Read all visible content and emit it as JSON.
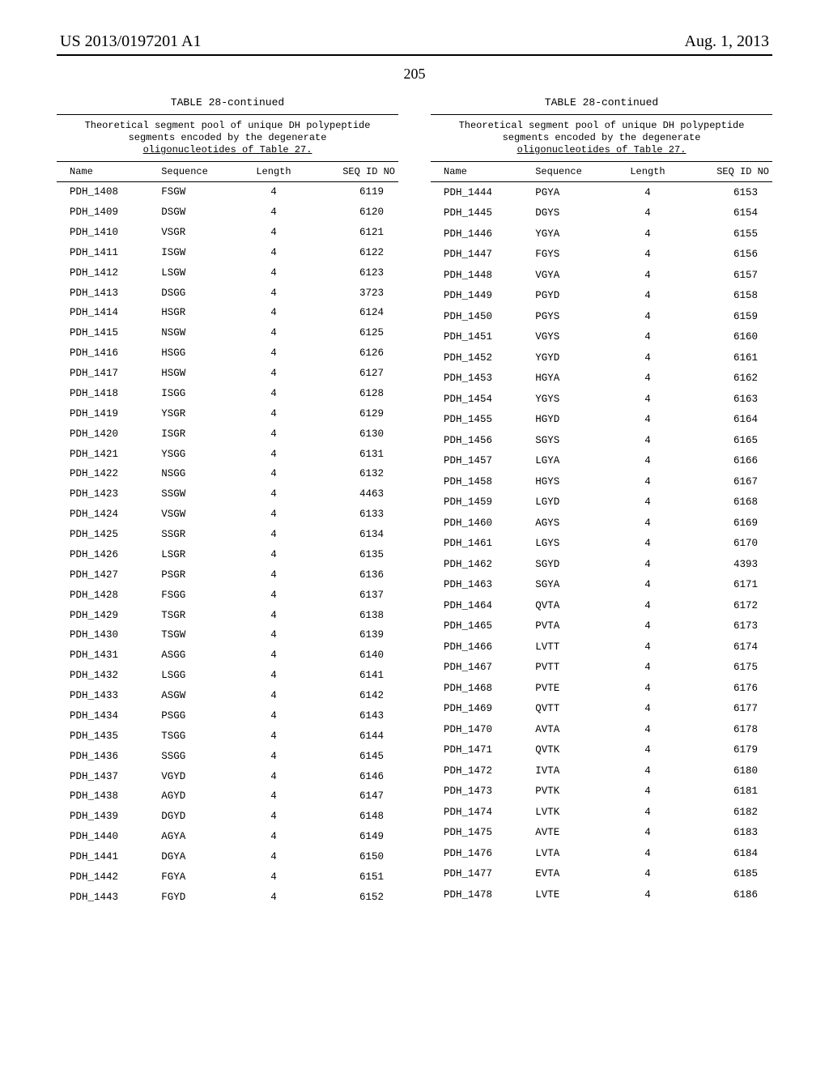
{
  "header": {
    "pub_number": "US 2013/0197201 A1",
    "pub_date": "Aug. 1, 2013"
  },
  "page_number": "205",
  "table": {
    "title": "TABLE 28-continued",
    "caption_line1": "Theoretical segment pool of unique DH polypeptide",
    "caption_line2": "segments encoded by the degenerate",
    "caption_line3": "oligonucleotides of Table 27.",
    "columns": {
      "name": "Name",
      "sequence": "Sequence",
      "length": "Length",
      "seq_id": "SEQ ID NO"
    }
  },
  "left_rows": [
    {
      "name": "PDH_1408",
      "sequence": "FSGW",
      "length": "4",
      "seq_id": "6119"
    },
    {
      "name": "PDH_1409",
      "sequence": "DSGW",
      "length": "4",
      "seq_id": "6120"
    },
    {
      "name": "PDH_1410",
      "sequence": "VSGR",
      "length": "4",
      "seq_id": "6121"
    },
    {
      "name": "PDH_1411",
      "sequence": "ISGW",
      "length": "4",
      "seq_id": "6122"
    },
    {
      "name": "PDH_1412",
      "sequence": "LSGW",
      "length": "4",
      "seq_id": "6123"
    },
    {
      "name": "PDH_1413",
      "sequence": "DSGG",
      "length": "4",
      "seq_id": "3723"
    },
    {
      "name": "PDH_1414",
      "sequence": "HSGR",
      "length": "4",
      "seq_id": "6124"
    },
    {
      "name": "PDH_1415",
      "sequence": "NSGW",
      "length": "4",
      "seq_id": "6125"
    },
    {
      "name": "PDH_1416",
      "sequence": "HSGG",
      "length": "4",
      "seq_id": "6126"
    },
    {
      "name": "PDH_1417",
      "sequence": "HSGW",
      "length": "4",
      "seq_id": "6127"
    },
    {
      "name": "PDH_1418",
      "sequence": "ISGG",
      "length": "4",
      "seq_id": "6128"
    },
    {
      "name": "PDH_1419",
      "sequence": "YSGR",
      "length": "4",
      "seq_id": "6129"
    },
    {
      "name": "PDH_1420",
      "sequence": "ISGR",
      "length": "4",
      "seq_id": "6130"
    },
    {
      "name": "PDH_1421",
      "sequence": "YSGG",
      "length": "4",
      "seq_id": "6131"
    },
    {
      "name": "PDH_1422",
      "sequence": "NSGG",
      "length": "4",
      "seq_id": "6132"
    },
    {
      "name": "PDH_1423",
      "sequence": "SSGW",
      "length": "4",
      "seq_id": "4463"
    },
    {
      "name": "PDH_1424",
      "sequence": "VSGW",
      "length": "4",
      "seq_id": "6133"
    },
    {
      "name": "PDH_1425",
      "sequence": "SSGR",
      "length": "4",
      "seq_id": "6134"
    },
    {
      "name": "PDH_1426",
      "sequence": "LSGR",
      "length": "4",
      "seq_id": "6135"
    },
    {
      "name": "PDH_1427",
      "sequence": "PSGR",
      "length": "4",
      "seq_id": "6136"
    },
    {
      "name": "PDH_1428",
      "sequence": "FSGG",
      "length": "4",
      "seq_id": "6137"
    },
    {
      "name": "PDH_1429",
      "sequence": "TSGR",
      "length": "4",
      "seq_id": "6138"
    },
    {
      "name": "PDH_1430",
      "sequence": "TSGW",
      "length": "4",
      "seq_id": "6139"
    },
    {
      "name": "PDH_1431",
      "sequence": "ASGG",
      "length": "4",
      "seq_id": "6140"
    },
    {
      "name": "PDH_1432",
      "sequence": "LSGG",
      "length": "4",
      "seq_id": "6141"
    },
    {
      "name": "PDH_1433",
      "sequence": "ASGW",
      "length": "4",
      "seq_id": "6142"
    },
    {
      "name": "PDH_1434",
      "sequence": "PSGG",
      "length": "4",
      "seq_id": "6143"
    },
    {
      "name": "PDH_1435",
      "sequence": "TSGG",
      "length": "4",
      "seq_id": "6144"
    },
    {
      "name": "PDH_1436",
      "sequence": "SSGG",
      "length": "4",
      "seq_id": "6145"
    },
    {
      "name": "PDH_1437",
      "sequence": "VGYD",
      "length": "4",
      "seq_id": "6146"
    },
    {
      "name": "PDH_1438",
      "sequence": "AGYD",
      "length": "4",
      "seq_id": "6147"
    },
    {
      "name": "PDH_1439",
      "sequence": "DGYD",
      "length": "4",
      "seq_id": "6148"
    },
    {
      "name": "PDH_1440",
      "sequence": "AGYA",
      "length": "4",
      "seq_id": "6149"
    },
    {
      "name": "PDH_1441",
      "sequence": "DGYA",
      "length": "4",
      "seq_id": "6150"
    },
    {
      "name": "PDH_1442",
      "sequence": "FGYA",
      "length": "4",
      "seq_id": "6151"
    },
    {
      "name": "PDH_1443",
      "sequence": "FGYD",
      "length": "4",
      "seq_id": "6152"
    }
  ],
  "right_rows": [
    {
      "name": "PDH_1444",
      "sequence": "PGYA",
      "length": "4",
      "seq_id": "6153"
    },
    {
      "name": "PDH_1445",
      "sequence": "DGYS",
      "length": "4",
      "seq_id": "6154"
    },
    {
      "name": "PDH_1446",
      "sequence": "YGYA",
      "length": "4",
      "seq_id": "6155"
    },
    {
      "name": "PDH_1447",
      "sequence": "FGYS",
      "length": "4",
      "seq_id": "6156"
    },
    {
      "name": "PDH_1448",
      "sequence": "VGYA",
      "length": "4",
      "seq_id": "6157"
    },
    {
      "name": "PDH_1449",
      "sequence": "PGYD",
      "length": "4",
      "seq_id": "6158"
    },
    {
      "name": "PDH_1450",
      "sequence": "PGYS",
      "length": "4",
      "seq_id": "6159"
    },
    {
      "name": "PDH_1451",
      "sequence": "VGYS",
      "length": "4",
      "seq_id": "6160"
    },
    {
      "name": "PDH_1452",
      "sequence": "YGYD",
      "length": "4",
      "seq_id": "6161"
    },
    {
      "name": "PDH_1453",
      "sequence": "HGYA",
      "length": "4",
      "seq_id": "6162"
    },
    {
      "name": "PDH_1454",
      "sequence": "YGYS",
      "length": "4",
      "seq_id": "6163"
    },
    {
      "name": "PDH_1455",
      "sequence": "HGYD",
      "length": "4",
      "seq_id": "6164"
    },
    {
      "name": "PDH_1456",
      "sequence": "SGYS",
      "length": "4",
      "seq_id": "6165"
    },
    {
      "name": "PDH_1457",
      "sequence": "LGYA",
      "length": "4",
      "seq_id": "6166"
    },
    {
      "name": "PDH_1458",
      "sequence": "HGYS",
      "length": "4",
      "seq_id": "6167"
    },
    {
      "name": "PDH_1459",
      "sequence": "LGYD",
      "length": "4",
      "seq_id": "6168"
    },
    {
      "name": "PDH_1460",
      "sequence": "AGYS",
      "length": "4",
      "seq_id": "6169"
    },
    {
      "name": "PDH_1461",
      "sequence": "LGYS",
      "length": "4",
      "seq_id": "6170"
    },
    {
      "name": "PDH_1462",
      "sequence": "SGYD",
      "length": "4",
      "seq_id": "4393"
    },
    {
      "name": "PDH_1463",
      "sequence": "SGYA",
      "length": "4",
      "seq_id": "6171"
    },
    {
      "name": "PDH_1464",
      "sequence": "QVTA",
      "length": "4",
      "seq_id": "6172"
    },
    {
      "name": "PDH_1465",
      "sequence": "PVTA",
      "length": "4",
      "seq_id": "6173"
    },
    {
      "name": "PDH_1466",
      "sequence": "LVTT",
      "length": "4",
      "seq_id": "6174"
    },
    {
      "name": "PDH_1467",
      "sequence": "PVTT",
      "length": "4",
      "seq_id": "6175"
    },
    {
      "name": "PDH_1468",
      "sequence": "PVTE",
      "length": "4",
      "seq_id": "6176"
    },
    {
      "name": "PDH_1469",
      "sequence": "QVTT",
      "length": "4",
      "seq_id": "6177"
    },
    {
      "name": "PDH_1470",
      "sequence": "AVTA",
      "length": "4",
      "seq_id": "6178"
    },
    {
      "name": "PDH_1471",
      "sequence": "QVTK",
      "length": "4",
      "seq_id": "6179"
    },
    {
      "name": "PDH_1472",
      "sequence": "IVTA",
      "length": "4",
      "seq_id": "6180"
    },
    {
      "name": "PDH_1473",
      "sequence": "PVTK",
      "length": "4",
      "seq_id": "6181"
    },
    {
      "name": "PDH_1474",
      "sequence": "LVTK",
      "length": "4",
      "seq_id": "6182"
    },
    {
      "name": "PDH_1475",
      "sequence": "AVTE",
      "length": "4",
      "seq_id": "6183"
    },
    {
      "name": "PDH_1476",
      "sequence": "LVTA",
      "length": "4",
      "seq_id": "6184"
    },
    {
      "name": "PDH_1477",
      "sequence": "EVTA",
      "length": "4",
      "seq_id": "6185"
    },
    {
      "name": "PDH_1478",
      "sequence": "LVTE",
      "length": "4",
      "seq_id": "6186"
    }
  ]
}
